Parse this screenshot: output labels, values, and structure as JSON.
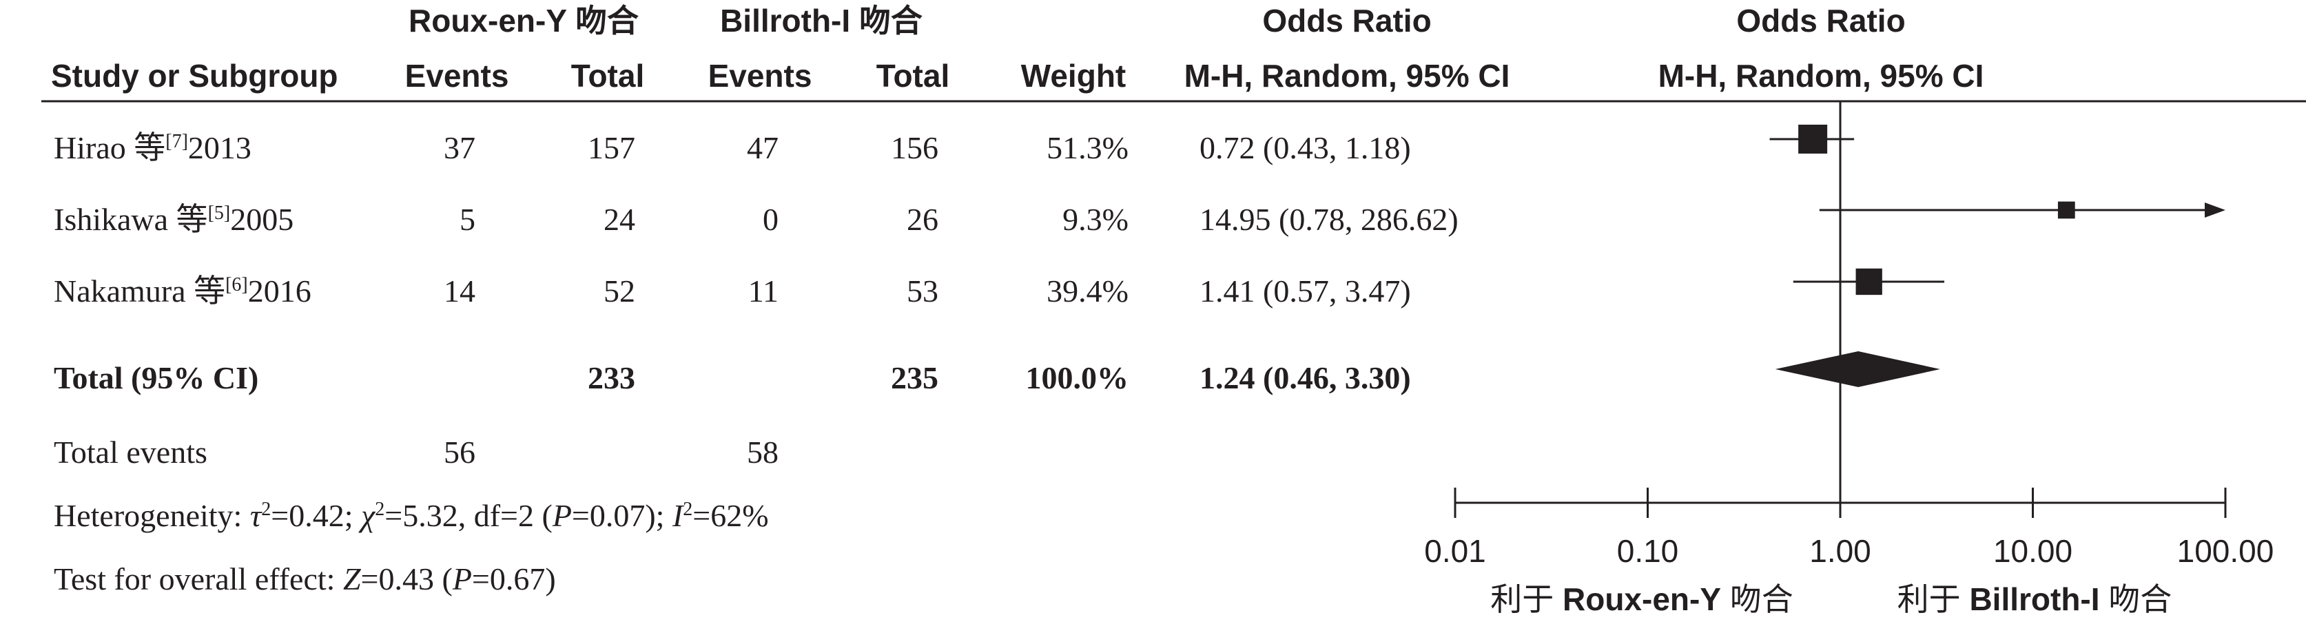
{
  "headers": {
    "group1_name": "Roux-en-Y 吻合",
    "group2_name": "Billroth-I 吻合",
    "odds_ratio_left": "Odds Ratio",
    "odds_ratio_right": "Odds Ratio",
    "study": "Study or Subgroup",
    "events1": "Events",
    "total1": "Total",
    "events2": "Events",
    "total2": "Total",
    "weight": "Weight",
    "method_left": "M-H, Random, 95% CI",
    "method_right": "M-H, Random, 95% CI"
  },
  "studies": [
    {
      "name": "Hirao 等",
      "ref": "[7]",
      "year": "2013",
      "events1": "37",
      "total1": "157",
      "events2": "47",
      "total2": "156",
      "weight": "51.3%",
      "ci_text": "0.72 (0.43, 1.18)"
    },
    {
      "name": "Ishikawa 等",
      "ref": "[5]",
      "year": "2005",
      "events1": "5",
      "total1": "24",
      "events2": "0",
      "total2": "26",
      "weight": "9.3%",
      "ci_text": "14.95 (0.78, 286.62)"
    },
    {
      "name": "Nakamura 等",
      "ref": "[6]",
      "year": "2016",
      "events1": "14",
      "total1": "52",
      "events2": "11",
      "total2": "53",
      "weight": "39.4%",
      "ci_text": "1.41 (0.57, 3.47)"
    }
  ],
  "total": {
    "label": "Total (95% CI)",
    "total1": "233",
    "total2": "235",
    "weight": "100.0%",
    "ci_text": "1.24 (0.46, 3.30)"
  },
  "total_events": {
    "label": "Total events",
    "events1": "56",
    "events2": "58"
  },
  "heterogeneity": {
    "prefix": "Heterogeneity: ",
    "tau_sym": "τ",
    "tau_sup": "2",
    "tau_val": "=0.42; ",
    "chi_sym": "χ",
    "chi_sup": "2",
    "chi_val": "=5.32, df=2 (",
    "p_sym": "P",
    "p_val": "=0.07); ",
    "i_sym": "I",
    "i_sup": "2",
    "i_val": "=62%"
  },
  "overall_effect": {
    "prefix": "Test for overall effect: ",
    "z_sym": "Z",
    "z_val": "=0.43 (",
    "p_sym": "P",
    "p_val": "=0.67)"
  },
  "favours": {
    "left_prefix": "利于 ",
    "left_bold": "Roux-en-Y",
    "left_suffix": " 吻合",
    "right_prefix": "利于 ",
    "right_bold": "Billroth-I",
    "right_suffix": " 吻合"
  },
  "chart_data": {
    "type": "forest",
    "x_scale": "log",
    "xlim": [
      0.01,
      100
    ],
    "xticks": [
      0.01,
      0.1,
      1,
      10,
      100
    ],
    "xtick_labels": [
      "0.01",
      "0.10",
      "1.00",
      "10.00",
      "100.00"
    ],
    "reference_line": 1,
    "studies": [
      {
        "name": "Hirao 等2013",
        "or": 0.72,
        "lo": 0.43,
        "hi": 1.18,
        "weight": 51.3
      },
      {
        "name": "Ishikawa 等2005",
        "or": 14.95,
        "lo": 0.78,
        "hi": 286.62,
        "weight": 9.3
      },
      {
        "name": "Nakamura 等2016",
        "or": 1.41,
        "lo": 0.57,
        "hi": 3.47,
        "weight": 39.4
      }
    ],
    "pooled": {
      "or": 1.24,
      "lo": 0.46,
      "hi": 3.3
    }
  },
  "colors": {
    "ink": "#231f20",
    "marker": "#231f20"
  }
}
